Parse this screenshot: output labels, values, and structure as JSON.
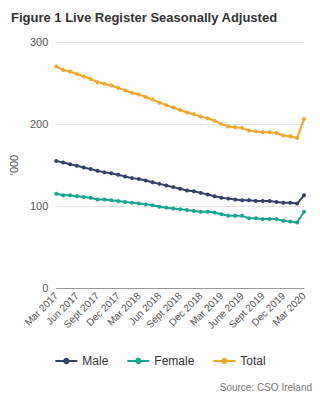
{
  "chart_data": {
    "type": "line",
    "title": "Figure 1 Live Register Seasonally Adjusted",
    "ylabel": "'000",
    "annotations": [
      "Source: CSO Ireland"
    ],
    "categories": [
      "Mar 2017",
      null,
      null,
      "Jun 2017",
      null,
      null,
      "Sept 2017",
      null,
      null,
      "Dec 2017",
      null,
      null,
      "Mar 2018",
      null,
      null,
      "Jun 2018",
      null,
      null,
      "Sept 2018",
      null,
      null,
      "Dec 2018",
      null,
      null,
      "Mar 2019",
      null,
      null,
      "June 2019",
      null,
      null,
      "Sept 2019",
      null,
      null,
      "Dec 2019",
      null,
      null,
      "Mar 2020"
    ],
    "series": [
      {
        "name": "Male",
        "color": "#33406a",
        "marker": "circle",
        "line_style": "solid",
        "values": [
          155,
          153,
          151,
          149,
          147,
          145,
          143,
          141,
          140,
          138,
          136,
          134,
          133,
          131,
          129,
          127,
          125,
          123,
          121,
          119,
          118,
          116,
          114,
          112,
          110,
          109,
          108,
          107,
          107,
          106,
          106,
          106,
          105,
          104,
          104,
          103,
          113
        ]
      },
      {
        "name": "Female",
        "color": "#17a594",
        "marker": "circle",
        "line_style": "solid",
        "values": [
          115,
          113,
          113,
          112,
          111,
          110,
          108,
          108,
          107,
          106,
          105,
          104,
          103,
          102,
          101,
          99,
          98,
          97,
          96,
          95,
          94,
          93,
          93,
          92,
          90,
          88,
          88,
          88,
          85,
          85,
          84,
          84,
          84,
          82,
          81,
          80,
          93
        ]
      },
      {
        "name": "Total",
        "color": "#f4a62a",
        "marker": "circle",
        "line_style": "solid",
        "values": [
          270,
          266,
          264,
          261,
          258,
          255,
          251,
          249,
          247,
          244,
          241,
          238,
          236,
          233,
          230,
          226,
          223,
          220,
          217,
          214,
          212,
          209,
          207,
          204,
          200,
          197,
          196,
          195,
          192,
          191,
          190,
          190,
          189,
          186,
          185,
          183,
          206
        ]
      }
    ],
    "ylim": [
      0,
      300
    ],
    "yticks": [
      0,
      100,
      200,
      300
    ],
    "grid": true,
    "legend": "bottom"
  }
}
